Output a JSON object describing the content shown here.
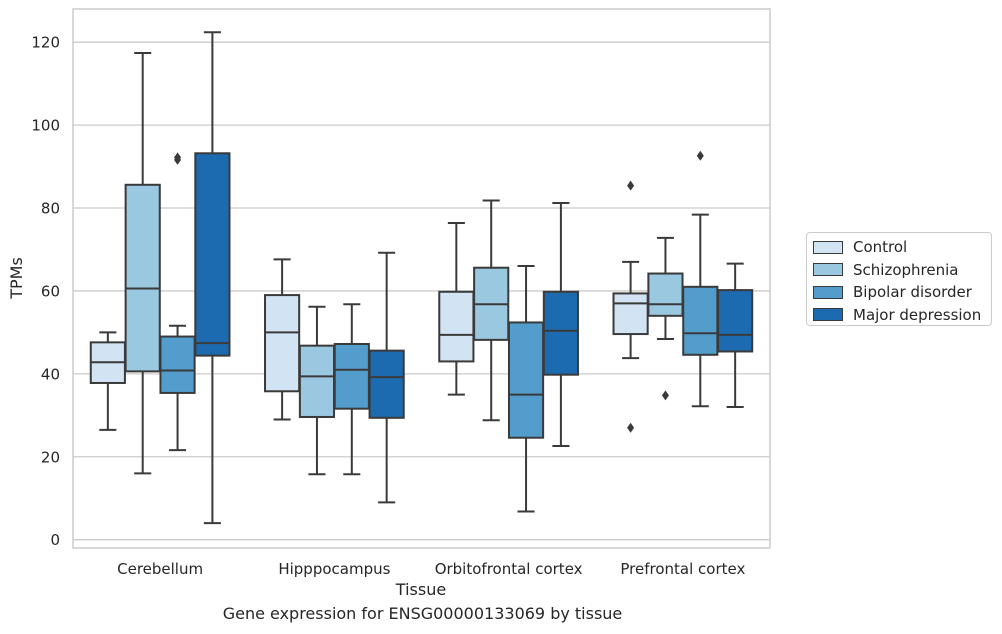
{
  "chart_data": {
    "type": "box",
    "title": "Gene expression for ENSG00000133069 by tissue",
    "xlabel": "Tissue",
    "ylabel": "TPMs",
    "ylim": [
      -2,
      128
    ],
    "yticks": [
      0,
      20,
      40,
      60,
      80,
      100,
      120
    ],
    "grid": "horizontal",
    "legend_position": "right",
    "categories": [
      "Cerebellum",
      "Hipppocampus",
      "Orbitofrontal cortex",
      "Prefrontal cortex"
    ],
    "series": [
      {
        "name": "Control",
        "color": "#d2e3f3",
        "boxes": [
          {
            "whisker_low": 26.5,
            "q1": 37.8,
            "median": 42.8,
            "q3": 47.6,
            "whisker_high": 50.0,
            "outliers": []
          },
          {
            "whisker_low": 29.0,
            "q1": 35.8,
            "median": 50.0,
            "q3": 59.0,
            "whisker_high": 67.6,
            "outliers": []
          },
          {
            "whisker_low": 35.0,
            "q1": 43.0,
            "median": 49.4,
            "q3": 59.8,
            "whisker_high": 76.4,
            "outliers": []
          },
          {
            "whisker_low": 43.8,
            "q1": 49.6,
            "median": 57.0,
            "q3": 59.4,
            "whisker_high": 67.0,
            "outliers": [
              85.4,
              27.0
            ]
          }
        ]
      },
      {
        "name": "Schizophrenia",
        "color": "#9ac8e0",
        "boxes": [
          {
            "whisker_low": 16.0,
            "q1": 40.6,
            "median": 60.6,
            "q3": 85.6,
            "whisker_high": 117.4,
            "outliers": []
          },
          {
            "whisker_low": 15.8,
            "q1": 29.6,
            "median": 39.4,
            "q3": 46.8,
            "whisker_high": 56.2,
            "outliers": []
          },
          {
            "whisker_low": 28.8,
            "q1": 48.2,
            "median": 56.8,
            "q3": 65.6,
            "whisker_high": 81.8,
            "outliers": []
          },
          {
            "whisker_low": 48.4,
            "q1": 54.0,
            "median": 56.8,
            "q3": 64.2,
            "whisker_high": 72.8,
            "outliers": [
              34.8
            ]
          }
        ]
      },
      {
        "name": "Bipolar disorder",
        "color": "#529dcc",
        "boxes": [
          {
            "whisker_low": 21.6,
            "q1": 35.4,
            "median": 40.8,
            "q3": 49.0,
            "whisker_high": 51.6,
            "outliers": [
              92.2,
              91.6
            ]
          },
          {
            "whisker_low": 15.8,
            "q1": 31.6,
            "median": 41.0,
            "q3": 47.2,
            "whisker_high": 56.8,
            "outliers": []
          },
          {
            "whisker_low": 6.8,
            "q1": 24.6,
            "median": 35.0,
            "q3": 52.4,
            "whisker_high": 66.0,
            "outliers": []
          },
          {
            "whisker_low": 32.2,
            "q1": 44.6,
            "median": 49.8,
            "q3": 61.0,
            "whisker_high": 78.4,
            "outliers": [
              92.6
            ]
          }
        ]
      },
      {
        "name": "Major depression",
        "color": "#1c6aaf",
        "boxes": [
          {
            "whisker_low": 4.0,
            "q1": 44.4,
            "median": 47.4,
            "q3": 93.2,
            "whisker_high": 122.4,
            "outliers": []
          },
          {
            "whisker_low": 9.0,
            "q1": 29.4,
            "median": 39.2,
            "q3": 45.6,
            "whisker_high": 69.2,
            "outliers": []
          },
          {
            "whisker_low": 22.6,
            "q1": 39.8,
            "median": 50.4,
            "q3": 59.8,
            "whisker_high": 81.2,
            "outliers": []
          },
          {
            "whisker_low": 32.0,
            "q1": 45.4,
            "median": 49.4,
            "q3": 60.2,
            "whisker_high": 66.6,
            "outliers": []
          }
        ]
      }
    ]
  }
}
